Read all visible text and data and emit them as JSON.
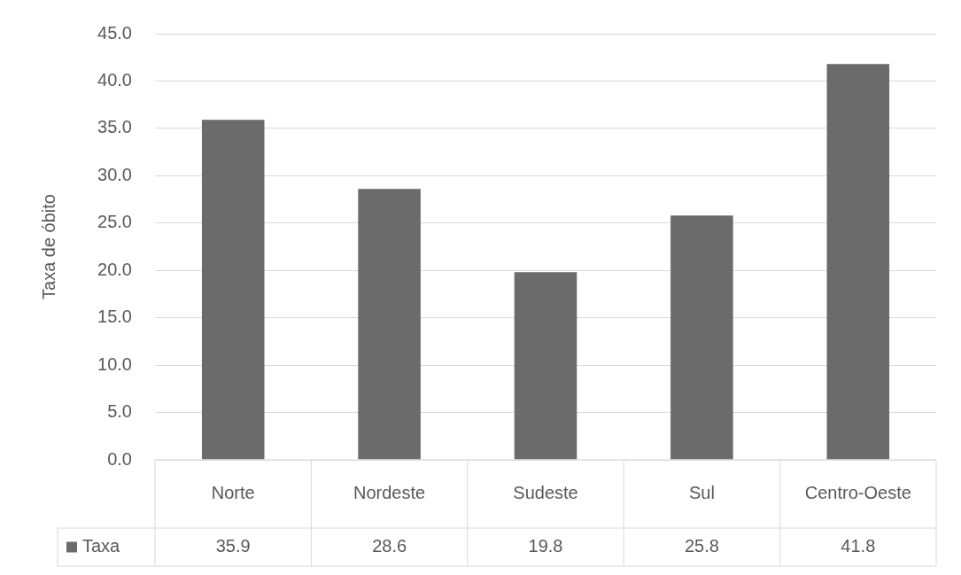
{
  "chart_data": {
    "type": "bar",
    "ylabel": "Taxa de óbito",
    "categories": [
      "Norte",
      "Nordeste",
      "Sudeste",
      "Sul",
      "Centro-Oeste"
    ],
    "series": [
      {
        "name": "Taxa",
        "color": "#6b6b6b",
        "values": [
          35.9,
          28.6,
          19.8,
          25.8,
          41.8
        ]
      }
    ],
    "ylim": [
      0,
      45
    ],
    "yticks": [
      {
        "value": 0,
        "label": "0.0"
      },
      {
        "value": 5,
        "label": "5.0"
      },
      {
        "value": 10,
        "label": "10.0"
      },
      {
        "value": 15,
        "label": "15.0"
      },
      {
        "value": 20,
        "label": "20.0"
      },
      {
        "value": 25,
        "label": "25.0"
      },
      {
        "value": 30,
        "label": "30.0"
      },
      {
        "value": 35,
        "label": "35.0"
      },
      {
        "value": 40,
        "label": "40.0"
      },
      {
        "value": 45,
        "label": "45.0"
      }
    ],
    "grid": "y",
    "data_labels": true
  }
}
